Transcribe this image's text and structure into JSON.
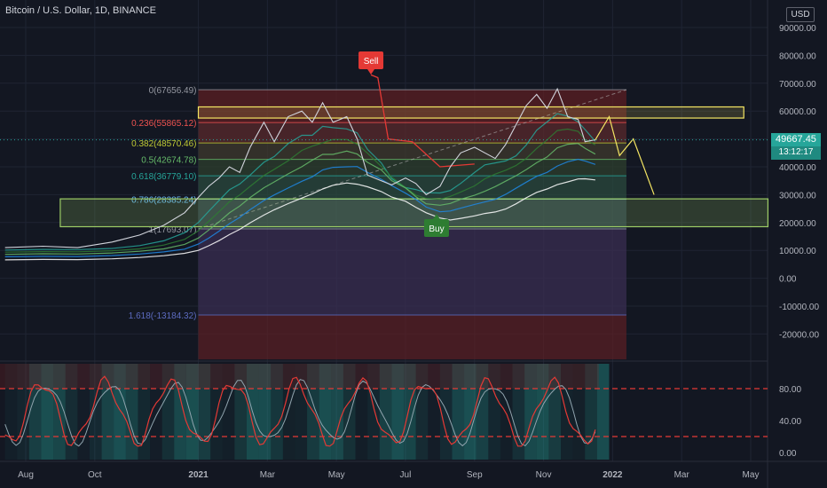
{
  "header": {
    "title": "Bitcoin / U.S. Dollar, 1D, BINANCE",
    "currency_button": "USD"
  },
  "price_label": {
    "value": "49667.45",
    "countdown": "13:12:17"
  },
  "signals": {
    "sell_label": "Sell",
    "buy_label": "Buy"
  },
  "colors": {
    "background": "#131722",
    "candles": "#d1d4dc",
    "fib_top": "#b71c1c",
    "fib_bottom": "#1e3a8a",
    "resistance_box": "#f5e663",
    "support_box": "#9ccc65",
    "stoch_k": "#e53935",
    "stoch_d": "#90a4ae"
  },
  "chart_data": {
    "type": "line",
    "title": "Bitcoin / U.S. Dollar, 1D, BINANCE",
    "y_axis_ticks": [
      "90000.00",
      "80000.00",
      "70000.00",
      "60000.00",
      "50000.00",
      "40000.00",
      "30000.00",
      "20000.00",
      "10000.00",
      "0.00",
      "-10000.00",
      "-20000.00"
    ],
    "ylim": [
      -30000,
      95000
    ],
    "x_axis_ticks": [
      "Aug",
      "Oct",
      "2021",
      "Mar",
      "May",
      "Jul",
      "Sep",
      "Nov",
      "2022",
      "Mar",
      "May"
    ],
    "x_tick_months": [
      0,
      2,
      5,
      7,
      9,
      11,
      13,
      15,
      17,
      19,
      21
    ],
    "xlim_months": [
      -0.6,
      23.7
    ],
    "series": [
      {
        "values": [
          [
            -0.6,
            11000
          ],
          [
            0.5,
            11500
          ],
          [
            1.5,
            11000
          ],
          [
            2.5,
            13000
          ],
          [
            3.3,
            15500
          ],
          [
            4.0,
            19000
          ],
          [
            4.6,
            23500
          ],
          [
            5.0,
            29000
          ],
          [
            5.3,
            33000
          ],
          [
            5.6,
            36000
          ],
          [
            5.9,
            40000
          ],
          [
            6.2,
            38000
          ],
          [
            6.5,
            47000
          ],
          [
            6.9,
            56000
          ],
          [
            7.2,
            49000
          ],
          [
            7.6,
            58000
          ],
          [
            8.0,
            60000
          ],
          [
            8.3,
            56000
          ],
          [
            8.6,
            63000
          ],
          [
            8.9,
            56000
          ],
          [
            9.3,
            58000
          ],
          [
            9.6,
            50000
          ],
          [
            9.9,
            37000
          ],
          [
            10.3,
            35000
          ],
          [
            10.6,
            33500
          ],
          [
            11.0,
            36000
          ],
          [
            11.3,
            34000
          ],
          [
            11.6,
            30000
          ],
          [
            12.0,
            33000
          ],
          [
            12.3,
            40000
          ],
          [
            12.6,
            45000
          ],
          [
            13.0,
            47000
          ],
          [
            13.3,
            45000
          ],
          [
            13.6,
            43000
          ],
          [
            13.9,
            48000
          ],
          [
            14.2,
            55000
          ],
          [
            14.5,
            62000
          ],
          [
            14.8,
            66000
          ],
          [
            15.1,
            61000
          ],
          [
            15.4,
            68000
          ],
          [
            15.7,
            58000
          ],
          [
            16.0,
            57000
          ],
          [
            16.2,
            49000
          ],
          [
            16.5,
            49667
          ]
        ]
      }
    ],
    "fibonacci_levels": [
      {
        "label": "0(67656.49)",
        "ratio": "0",
        "price": 67656.49
      },
      {
        "label": "0.236(55865.12)",
        "ratio": "0.236",
        "price": 55865.12
      },
      {
        "label": "0.382(48570.46)",
        "ratio": "0.382",
        "price": 48570.46
      },
      {
        "label": "0.5(42674.78)",
        "ratio": "0.5",
        "price": 42674.78
      },
      {
        "label": "0.618(36779.10)",
        "ratio": "0.618",
        "price": 36779.1
      },
      {
        "label": "0.786(28385.24)",
        "ratio": "0.786",
        "price": 28385.24
      },
      {
        "label": "1(17693.07)",
        "ratio": "1",
        "price": 17693.07
      },
      {
        "label": "1.618(-13184.32)",
        "ratio": "1.618",
        "price": -13184.32
      }
    ],
    "fib_x_range_months": [
      5.0,
      17.4
    ],
    "zones": [
      {
        "name": "resistance",
        "y_low": 57500,
        "y_high": 61500,
        "x_start_months": 5.0,
        "x_end_months": 20.8
      },
      {
        "name": "support",
        "y_low": 18500,
        "y_high": 28500,
        "x_start_months": 1.0,
        "x_end_months": 21.5
      }
    ],
    "projection": [
      [
        16.5,
        49667
      ],
      [
        16.9,
        58000
      ],
      [
        17.2,
        44000
      ],
      [
        17.6,
        50000
      ],
      [
        18.2,
        30000
      ]
    ],
    "signal_points": [
      {
        "label": "Sell",
        "x_month": 10.0,
        "price": 73000,
        "type": "sell"
      },
      {
        "label": "Buy",
        "x_month": 11.9,
        "price": 25000,
        "type": "buy"
      }
    ],
    "indicator": {
      "type": "stochastic",
      "y_axis_ticks": [
        "80.00",
        "40.00",
        "0.00"
      ],
      "ylim": [
        -10,
        100
      ],
      "levels": [
        80,
        20
      ]
    },
    "current_price": 49667.45
  }
}
